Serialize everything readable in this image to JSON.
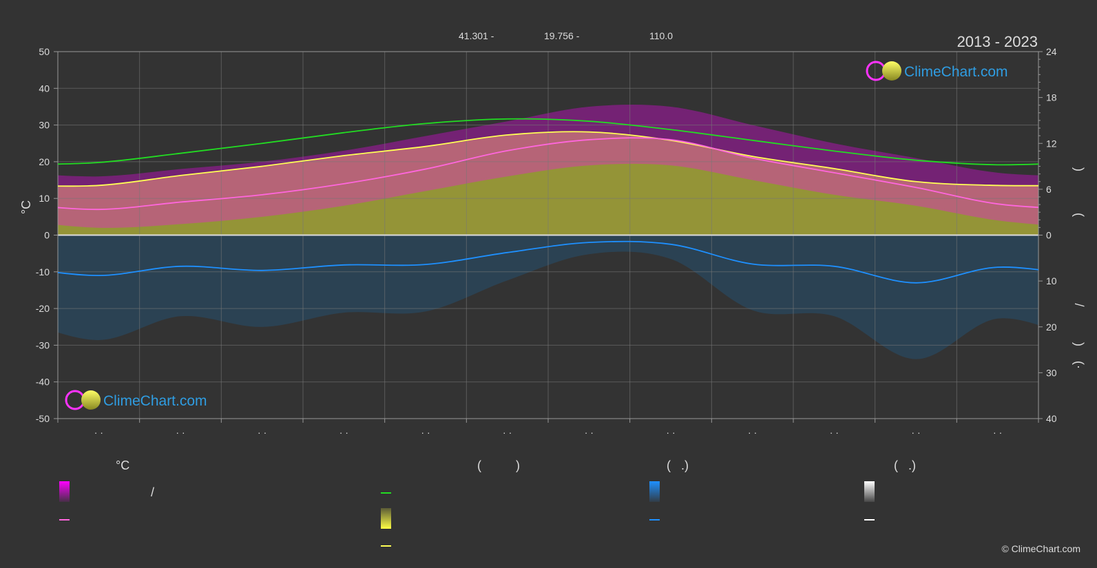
{
  "header": {
    "lat": "41.301 -",
    "lon": "19.756 -",
    "elevation": "110.0",
    "year_range": "2013 - 2023"
  },
  "axes": {
    "left_unit": "°C",
    "right_marks": [
      ")",
      "(",
      "/",
      ")",
      "(·"
    ]
  },
  "brand": {
    "name": "ClimeChart.com",
    "copyright": "© ClimeChart.com"
  },
  "legend": {
    "headers": [
      "°C",
      "(          )",
      "(   .)",
      "(   .)"
    ],
    "items": [
      {
        "type": "swatch-range",
        "color": "#ff00ff",
        "label": "/"
      },
      {
        "type": "line",
        "color": "#ff66dd",
        "label": ""
      },
      {
        "type": "line",
        "color": "#22dd22",
        "label": ""
      },
      {
        "type": "swatch-range",
        "color": "#dddd33",
        "label": ""
      },
      {
        "type": "line",
        "color": "#ffff55",
        "label": ""
      },
      {
        "type": "swatch-range",
        "color": "#1e90ff",
        "label": ""
      },
      {
        "type": "line",
        "color": "#1e90ff",
        "label": ""
      },
      {
        "type": "swatch-range",
        "color": "#ffffff",
        "label": ""
      },
      {
        "type": "line",
        "color": "#ffffff",
        "label": ""
      }
    ]
  },
  "chart_data": {
    "type": "line",
    "x_tick_labels": [
      "· ·",
      "· ·",
      "· ·",
      "· ·",
      "· ·",
      "· ·",
      "· ·",
      "· ·",
      "· ·",
      "· ·",
      "· ·",
      "· ·"
    ],
    "left_axis": {
      "ticks": [
        50,
        40,
        30,
        20,
        10,
        0,
        -10,
        -20,
        -30,
        -40,
        -50
      ],
      "ylim": [
        -50,
        50
      ]
    },
    "right_axis_top": {
      "ticks": [
        24,
        18,
        12,
        6,
        0
      ],
      "ylim": [
        0,
        24
      ]
    },
    "right_axis_bottom": {
      "ticks": [
        0,
        10,
        20,
        30,
        40
      ],
      "ylim": [
        0,
        40
      ]
    },
    "months_x": [
      0.5,
      1.5,
      2.5,
      3.5,
      4.5,
      5.5,
      6.5,
      7.5,
      8.5,
      9.5,
      10.5,
      11.5
    ],
    "series": [
      {
        "key": "daylight_hours",
        "color": "#22dd22",
        "values": [
          9.5,
          10.7,
          12.0,
          13.4,
          14.6,
          15.2,
          14.9,
          13.8,
          12.4,
          11.0,
          9.8,
          9.2
        ]
      },
      {
        "key": "sunshine_hours",
        "color": "#ffff55",
        "values": [
          6.5,
          7.8,
          9.0,
          10.4,
          11.6,
          13.1,
          13.5,
          12.4,
          10.3,
          8.7,
          7.0,
          6.5
        ]
      },
      {
        "key": "mean_temperature",
        "color": "#ff66dd",
        "values": [
          7,
          9,
          11,
          14,
          18,
          23,
          26,
          26,
          21,
          17,
          13,
          8.5
        ]
      },
      {
        "key": "mean_precipitation",
        "color": "#1e90ff",
        "values": [
          8.8,
          6.8,
          7.7,
          6.5,
          6.4,
          3.8,
          1.6,
          2.0,
          6.3,
          6.8,
          10.4,
          7.0
        ]
      }
    ],
    "bands": [
      {
        "key": "temperature_range",
        "color": "#ff00ff",
        "low": [
          2,
          3,
          5,
          8,
          12,
          16,
          19,
          19,
          15,
          11,
          8,
          4
        ],
        "high": [
          16,
          18,
          20,
          23,
          27,
          31,
          35,
          35,
          30,
          25,
          21,
          17
        ]
      },
      {
        "key": "sunshine_daily",
        "color": "#b5b53a",
        "values": [
          6.5,
          7.8,
          9.0,
          10.4,
          11.6,
          13.1,
          13.5,
          12.4,
          10.3,
          8.7,
          7.0,
          6.5
        ]
      },
      {
        "key": "precipitation_daily",
        "color": "#1e5f8f",
        "values": [
          8.8,
          6.8,
          7.7,
          6.5,
          6.4,
          3.8,
          1.6,
          2.0,
          6.3,
          6.8,
          10.4,
          7.0
        ]
      }
    ]
  }
}
